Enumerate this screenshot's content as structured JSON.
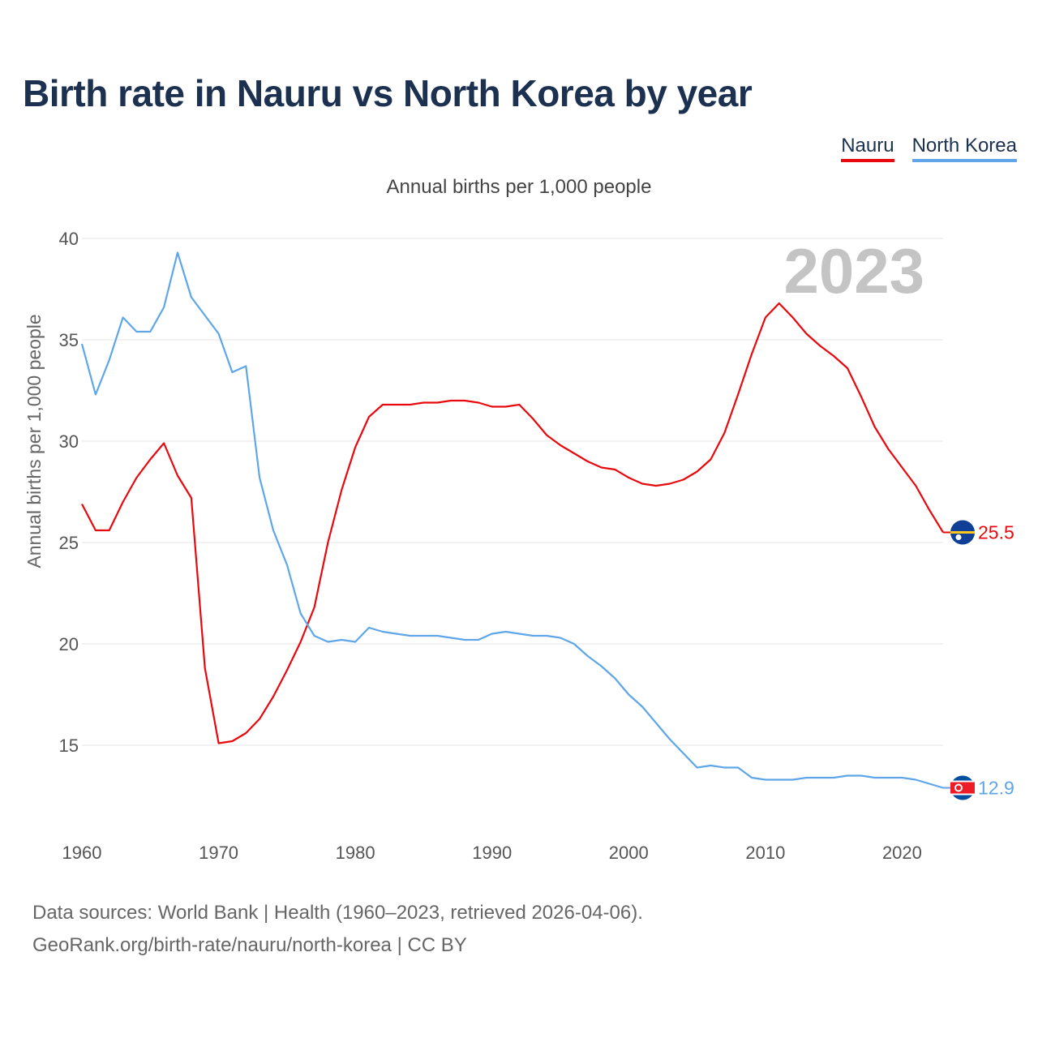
{
  "title": "Birth rate in Nauru vs North Korea by year",
  "subtitle": "Annual births per 1,000 people",
  "legend": [
    {
      "name": "Nauru",
      "color": "#e8090e"
    },
    {
      "name": "North Korea",
      "color": "#5fa6e8"
    }
  ],
  "footer": {
    "line1": "Data sources: World Bank | Health (1960–2023, retrieved 2026-04-06).",
    "line2": "GeoRank.org/birth-rate/nauru/north-korea | CC BY"
  },
  "chart_data": {
    "type": "line",
    "title": "Birth rate in Nauru vs North Korea by year",
    "ylabel": "Annual births per 1,000 people",
    "xlabel": "",
    "current_year_label": "2023",
    "xlim": [
      1960,
      2023
    ],
    "ylim": [
      12,
      40
    ],
    "x_ticks": [
      "1960",
      "1970",
      "1980",
      "1990",
      "2000",
      "2010",
      "2020"
    ],
    "y_ticks": [
      "15",
      "20",
      "25",
      "30",
      "35",
      "40"
    ],
    "x": [
      1960,
      1961,
      1962,
      1963,
      1964,
      1965,
      1966,
      1967,
      1968,
      1969,
      1970,
      1971,
      1972,
      1973,
      1974,
      1975,
      1976,
      1977,
      1978,
      1979,
      1980,
      1981,
      1982,
      1983,
      1984,
      1985,
      1986,
      1987,
      1988,
      1989,
      1990,
      1991,
      1992,
      1993,
      1994,
      1995,
      1996,
      1997,
      1998,
      1999,
      2000,
      2001,
      2002,
      2003,
      2004,
      2005,
      2006,
      2007,
      2008,
      2009,
      2010,
      2011,
      2012,
      2013,
      2014,
      2015,
      2016,
      2017,
      2018,
      2019,
      2020,
      2021,
      2022,
      2023
    ],
    "series": [
      {
        "name": "Nauru",
        "color": "#e8090e",
        "end_label": "25.5",
        "values": [
          26.9,
          25.6,
          25.6,
          27.0,
          28.2,
          29.1,
          29.9,
          28.3,
          27.2,
          18.8,
          15.1,
          15.2,
          15.6,
          16.3,
          17.4,
          18.7,
          20.1,
          21.8,
          25.0,
          27.6,
          29.7,
          31.2,
          31.8,
          31.8,
          31.8,
          31.9,
          31.9,
          32.0,
          32.0,
          31.9,
          31.7,
          31.7,
          31.8,
          31.1,
          30.3,
          29.8,
          29.4,
          29.0,
          28.7,
          28.6,
          28.2,
          27.9,
          27.8,
          27.9,
          28.1,
          28.5,
          29.1,
          30.4,
          32.3,
          34.3,
          36.1,
          36.8,
          36.1,
          35.3,
          34.7,
          34.2,
          33.6,
          32.2,
          30.7,
          29.6,
          28.7,
          27.8,
          26.6,
          25.5
        ]
      },
      {
        "name": "North Korea",
        "color": "#5fa6e8",
        "end_label": "12.9",
        "values": [
          34.8,
          32.3,
          34.0,
          36.1,
          35.4,
          35.4,
          36.6,
          39.3,
          37.1,
          36.2,
          35.3,
          33.4,
          33.7,
          28.2,
          25.6,
          23.9,
          21.5,
          20.4,
          20.1,
          20.2,
          20.1,
          20.8,
          20.6,
          20.5,
          20.4,
          20.4,
          20.4,
          20.3,
          20.2,
          20.2,
          20.5,
          20.6,
          20.5,
          20.4,
          20.4,
          20.3,
          20.0,
          19.4,
          18.9,
          18.3,
          17.5,
          16.9,
          16.1,
          15.3,
          14.6,
          13.9,
          14.0,
          13.9,
          13.9,
          13.4,
          13.3,
          13.3,
          13.3,
          13.4,
          13.4,
          13.4,
          13.5,
          13.5,
          13.4,
          13.4,
          13.4,
          13.3,
          13.1,
          12.9
        ]
      }
    ]
  }
}
